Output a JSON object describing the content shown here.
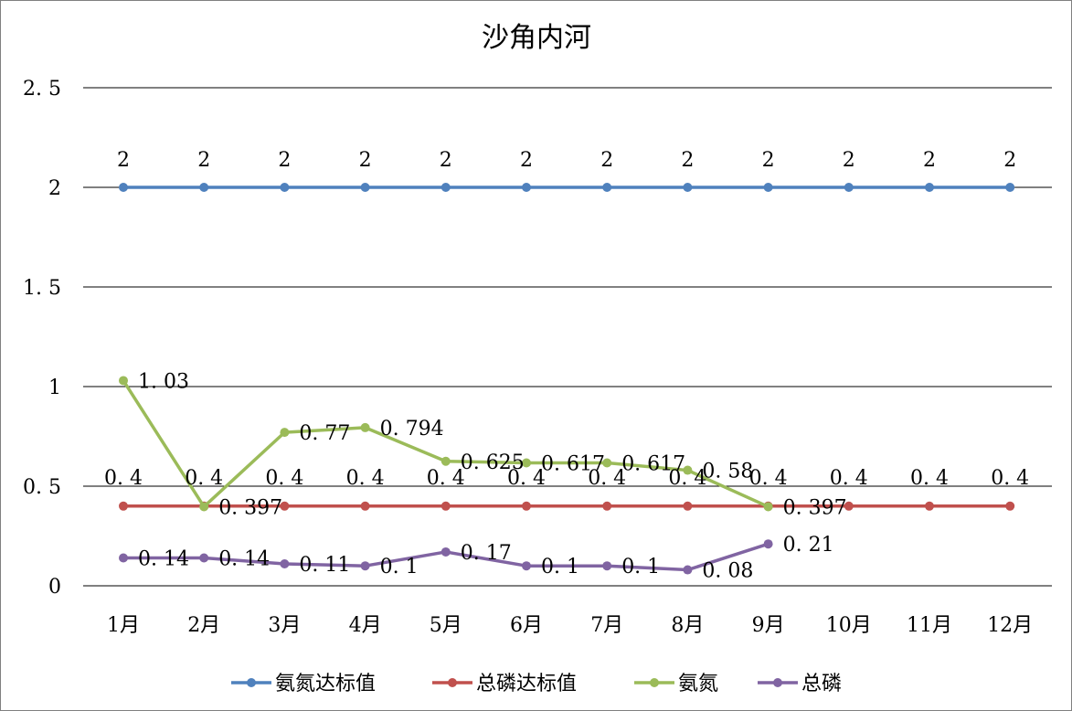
{
  "chart_data": {
    "type": "line",
    "title": "沙角内河",
    "xlabel": "",
    "ylabel": "",
    "categories": [
      "1月",
      "2月",
      "3月",
      "4月",
      "5月",
      "6月",
      "7月",
      "8月",
      "9月",
      "10月",
      "11月",
      "12月"
    ],
    "y_ticks": [
      "0",
      "0.5",
      "1",
      "1.5",
      "2",
      "2.5"
    ],
    "ylim": [
      0,
      2.5
    ],
    "grid": true,
    "legend_position": "bottom",
    "series": [
      {
        "name": "氨氮达标值",
        "color": "#4F81BD",
        "values": [
          2,
          2,
          2,
          2,
          2,
          2,
          2,
          2,
          2,
          2,
          2,
          2
        ],
        "labels": [
          "2",
          "2",
          "2",
          "2",
          "2",
          "2",
          "2",
          "2",
          "2",
          "2",
          "2",
          "2"
        ]
      },
      {
        "name": "总磷达标值",
        "color": "#C0504D",
        "values": [
          0.4,
          0.4,
          0.4,
          0.4,
          0.4,
          0.4,
          0.4,
          0.4,
          0.4,
          0.4,
          0.4,
          0.4
        ],
        "labels": [
          "0.4",
          "0.4",
          "0.4",
          "0.4",
          "0.4",
          "0.4",
          "0.4",
          "0.4",
          "0.4",
          "0.4",
          "0.4",
          "0.4"
        ]
      },
      {
        "name": "氨氮",
        "color": "#9BBB59",
        "values": [
          1.03,
          0.397,
          0.77,
          0.794,
          0.625,
          0.617,
          0.617,
          0.58,
          0.397,
          null,
          null,
          null
        ],
        "labels": [
          "1.03",
          "0.397",
          "0.77",
          "0.794",
          "0.625",
          "0.617",
          "0.617",
          "0.58",
          "0.397",
          null,
          null,
          null
        ]
      },
      {
        "name": "总磷",
        "color": "#8064A2",
        "values": [
          0.14,
          0.14,
          0.11,
          0.1,
          0.17,
          0.1,
          0.1,
          0.08,
          0.21,
          null,
          null,
          null
        ],
        "labels": [
          "0.14",
          "0.14",
          "0.11",
          "0.1",
          "0.17",
          "0.1",
          "0.1",
          "0.08",
          "0.21",
          null,
          null,
          null
        ]
      }
    ]
  }
}
